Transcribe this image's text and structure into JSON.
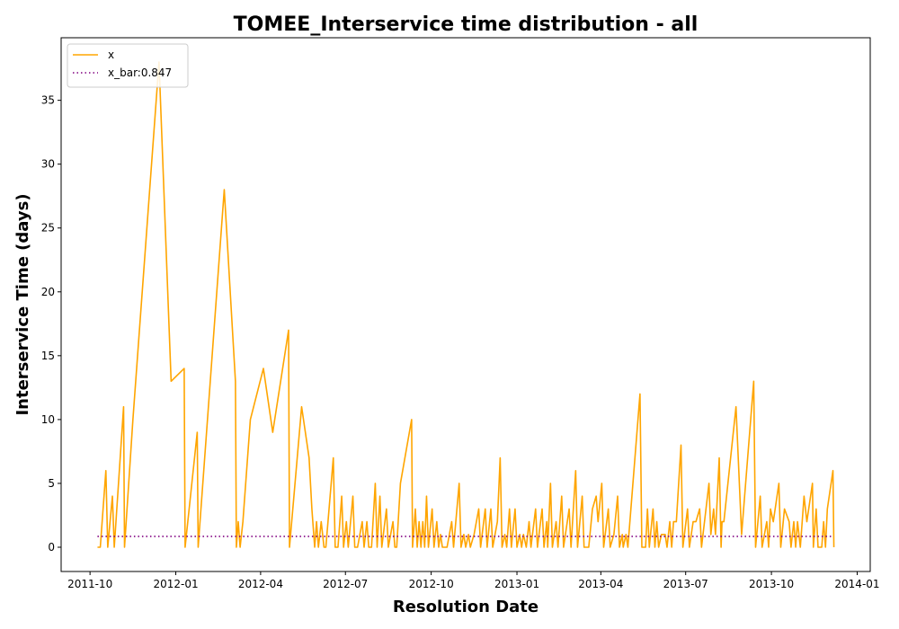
{
  "chart_data": {
    "type": "line",
    "title": "TOMEE_Interservice time distribution - all",
    "xlabel": "Resolution Date",
    "ylabel": "Interservice Time (days)",
    "legend": "upper left",
    "xlim": [
      15217,
      16085
    ],
    "xticks": [
      {
        "value": 15248,
        "label": "2011-10"
      },
      {
        "value": 15340,
        "label": "2012-01"
      },
      {
        "value": 15431,
        "label": "2012-04"
      },
      {
        "value": 15522,
        "label": "2012-07"
      },
      {
        "value": 15614,
        "label": "2012-10"
      },
      {
        "value": 15706,
        "label": "2013-01"
      },
      {
        "value": 15796,
        "label": "2013-04"
      },
      {
        "value": 15887,
        "label": "2013-07"
      },
      {
        "value": 15979,
        "label": "2013-10"
      },
      {
        "value": 16071,
        "label": "2014-01"
      }
    ],
    "ylim": [
      -1.9,
      39.9
    ],
    "yticks": [
      0,
      5,
      10,
      15,
      20,
      25,
      30,
      35
    ],
    "series": [
      {
        "name": "x",
        "color": "#ffa500",
        "linestyle": "solid",
        "x": [
          15256,
          15259,
          15265,
          15267,
          15272,
          15274,
          15284,
          15285,
          15294,
          15322,
          15335,
          15349,
          15350,
          15363,
          15364,
          15392,
          15404,
          15405,
          15407,
          15409,
          15412,
          15420,
          15434,
          15444,
          15461,
          15462,
          15475,
          15483,
          15486,
          15489,
          15491,
          15493,
          15496,
          15499,
          15501,
          15509,
          15511,
          15514,
          15518,
          15520,
          15523,
          15525,
          15530,
          15532,
          15535,
          15540,
          15542,
          15545,
          15547,
          15550,
          15554,
          15556,
          15559,
          15561,
          15566,
          15568,
          15573,
          15575,
          15577,
          15581,
          15593,
          15594,
          15597,
          15599,
          15601,
          15603,
          15605,
          15607,
          15609,
          15611,
          15615,
          15617,
          15620,
          15622,
          15624,
          15626,
          15631,
          15636,
          15638,
          15644,
          15646,
          15649,
          15651,
          15654,
          15656,
          15660,
          15665,
          15667,
          15672,
          15674,
          15678,
          15680,
          15685,
          15688,
          15690,
          15693,
          15695,
          15698,
          15700,
          15704,
          15706,
          15709,
          15711,
          15713,
          15716,
          15719,
          15721,
          15726,
          15728,
          15733,
          15735,
          15738,
          15739,
          15742,
          15744,
          15748,
          15750,
          15754,
          15756,
          15762,
          15764,
          15769,
          15771,
          15776,
          15778,
          15783,
          15787,
          15791,
          15793,
          15797,
          15799,
          15804,
          15806,
          15810,
          15814,
          15816,
          15819,
          15820,
          15823,
          15825,
          15838,
          15840,
          15844,
          15846,
          15848,
          15852,
          15854,
          15856,
          15858,
          15861,
          15865,
          15867,
          15870,
          15872,
          15874,
          15877,
          15882,
          15884,
          15889,
          15891,
          15895,
          15898,
          15902,
          15904,
          15912,
          15914,
          15917,
          15919,
          15923,
          15925,
          15926,
          15928,
          15941,
          15947,
          15960,
          15962,
          15967,
          15969,
          15974,
          15976,
          15978,
          15981,
          15987,
          15989,
          15993,
          15998,
          16000,
          16003,
          16005,
          16007,
          16010,
          16014,
          16017,
          16023,
          16024,
          16027,
          16029,
          16033,
          16035,
          16037,
          16039,
          16045,
          16046
        ],
        "values": [
          0,
          0,
          6,
          0,
          4,
          0,
          11,
          0,
          10,
          38,
          13,
          14,
          0,
          9,
          0,
          28,
          13,
          0,
          2,
          0,
          2,
          10,
          14,
          9,
          17,
          0,
          11,
          7,
          3,
          0,
          2,
          0,
          2,
          0,
          0,
          7,
          0,
          0,
          4,
          0,
          2,
          0,
          4,
          0,
          0,
          2,
          0,
          2,
          0,
          0,
          5,
          0,
          4,
          0,
          3,
          0,
          2,
          0,
          0,
          5,
          10,
          0,
          3,
          0,
          2,
          0,
          2,
          0,
          4,
          0,
          3,
          0,
          2,
          0,
          1,
          0,
          0,
          2,
          0,
          5,
          0,
          1,
          0,
          1,
          0,
          1,
          3,
          0,
          3,
          0,
          3,
          0,
          2,
          7,
          0,
          1,
          0,
          3,
          0,
          3,
          0,
          1,
          0,
          1,
          0,
          2,
          0,
          3,
          0,
          3,
          0,
          2,
          0,
          5,
          0,
          2,
          0,
          4,
          0,
          3,
          0,
          6,
          0,
          4,
          0,
          0,
          3,
          4,
          2,
          5,
          0,
          3,
          0,
          1,
          4,
          0,
          1,
          0,
          1,
          0,
          12,
          0,
          0,
          3,
          0,
          3,
          0,
          2,
          0,
          1,
          1,
          0,
          2,
          0,
          2,
          2,
          8,
          0,
          3,
          0,
          2,
          2,
          3,
          0,
          5,
          1,
          3,
          1,
          7,
          0,
          2,
          2,
          11,
          1,
          13,
          0,
          4,
          0,
          2,
          0,
          3,
          2,
          5,
          0,
          3,
          2,
          0,
          2,
          0,
          2,
          0,
          4,
          2,
          5,
          0,
          3,
          0,
          0,
          2,
          0,
          3,
          6,
          0
        ]
      },
      {
        "name": "x_bar:0.847",
        "color": "#800080",
        "linestyle": "dotted",
        "x": [
          15256,
          16045
        ],
        "values": [
          0.847,
          0.847
        ]
      }
    ]
  }
}
